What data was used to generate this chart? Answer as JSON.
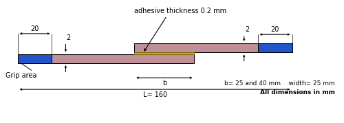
{
  "fig_width": 5.0,
  "fig_height": 1.79,
  "dpi": 100,
  "bg_color": "#ffffff",
  "lap_color": "#c09098",
  "grip_color": "#2255cc",
  "adhesive_color": "#c8a828",
  "text_color": "#000000",
  "annotations": {
    "adhesive_label": "adhesive thickness 0.2 mm",
    "grip_label": "Grip area",
    "dim_20_left": "20",
    "dim_2_left": "2",
    "dim_b": "b",
    "dim_2_right": "2",
    "dim_20_right": "20",
    "dim_L": "L= 160",
    "dim_b_note": "b= 25 and 40 mm    width= 25 mm",
    "dim_all": "All dimensions in mm"
  }
}
